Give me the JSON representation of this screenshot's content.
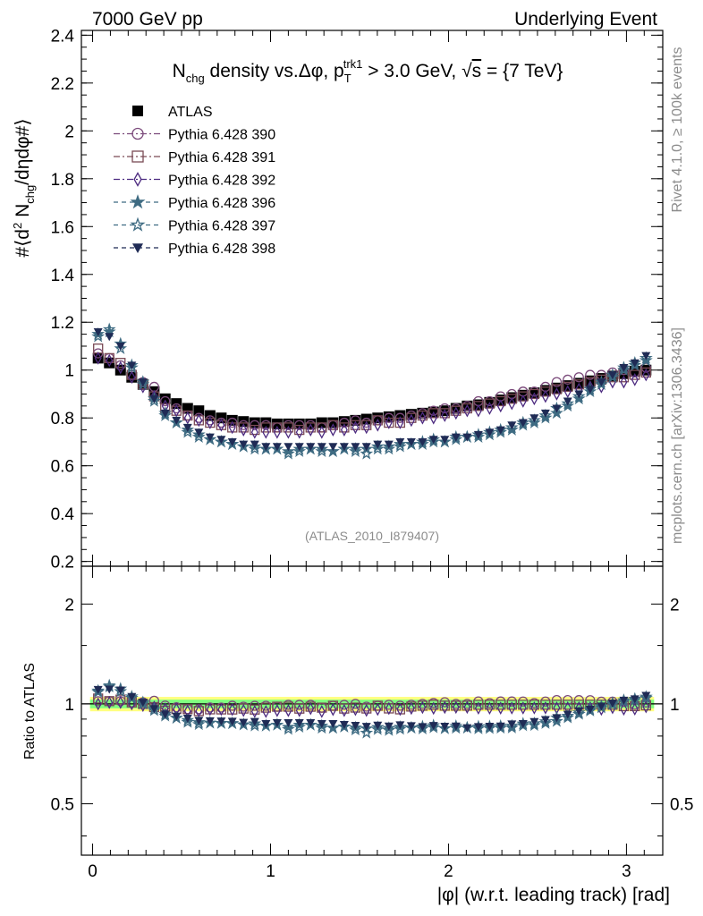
{
  "header": {
    "left": "7000 GeV pp",
    "right": "Underlying Event"
  },
  "side_labels": {
    "rivet": "Rivet 4.1.0, ≥ 100k events",
    "mcplots": "mcplots.cern.ch [arXiv:1306.3436]"
  },
  "colors": {
    "data": "#000000",
    "pythia390": "#7b4a7b",
    "pythia391": "#7a4a55",
    "pythia392": "#4d2b80",
    "pythia396": "#3e6b82",
    "pythia397": "#3e6b82",
    "pythia398": "#1f2b55",
    "band_inner": "#80ff80",
    "band_outer": "#ffff80"
  },
  "chart_data": [
    {
      "type": "scatter",
      "title_parts": {
        "n": "N",
        "n_sub": "chg",
        "rest": " density vs.Δφ, p",
        "p_sub": "T",
        "p_sup": "trk1",
        "cut": " > 3.0 GeV, ",
        "sqrt": "√",
        "s": "s",
        "energy": " = {7 TeV}"
      },
      "ylabel_parts": {
        "a": "#⟨d",
        "sup": "2",
        "b": " N",
        "sub": "chg",
        "c": "/dηdφ#⟩"
      },
      "analysis_tag": "(ATLAS_2010_I879407)",
      "xlim": [
        -0.063,
        3.204
      ],
      "ylim": [
        0.18,
        2.42
      ],
      "yticks": [
        "0.2",
        "0.4",
        "0.6",
        "0.8",
        "1",
        "1.2",
        "1.4",
        "1.6",
        "1.8",
        "2",
        "2.2",
        "2.4"
      ],
      "x": [
        0.031,
        0.094,
        0.157,
        0.22,
        0.283,
        0.346,
        0.408,
        0.471,
        0.534,
        0.597,
        0.66,
        0.723,
        0.785,
        0.848,
        0.911,
        0.974,
        1.037,
        1.1,
        1.162,
        1.225,
        1.288,
        1.351,
        1.414,
        1.477,
        1.539,
        1.602,
        1.665,
        1.728,
        1.791,
        1.854,
        1.916,
        1.979,
        2.042,
        2.105,
        2.168,
        2.231,
        2.293,
        2.356,
        2.419,
        2.482,
        2.545,
        2.608,
        2.67,
        2.733,
        2.796,
        2.859,
        2.922,
        2.985,
        3.047,
        3.11
      ],
      "series": [
        {
          "name": "ATLAS",
          "marker": "square-filled",
          "line": "none",
          "color_key": "data",
          "values": [
            1.05,
            1.03,
            1.0,
            0.97,
            0.94,
            0.91,
            0.88,
            0.86,
            0.84,
            0.83,
            0.81,
            0.8,
            0.79,
            0.785,
            0.78,
            0.78,
            0.775,
            0.775,
            0.775,
            0.775,
            0.78,
            0.78,
            0.785,
            0.79,
            0.795,
            0.8,
            0.805,
            0.81,
            0.815,
            0.82,
            0.825,
            0.83,
            0.84,
            0.85,
            0.855,
            0.865,
            0.875,
            0.885,
            0.895,
            0.905,
            0.915,
            0.925,
            0.935,
            0.945,
            0.955,
            0.965,
            0.975,
            0.985,
            0.995,
            1.0
          ]
        },
        {
          "name": "Pythia 6.428 390",
          "marker": "circle-open",
          "line": "dashdot",
          "color_key": "pythia390",
          "values": [
            1.07,
            1.05,
            1.02,
            0.98,
            0.95,
            0.93,
            0.87,
            0.84,
            0.81,
            0.8,
            0.79,
            0.78,
            0.78,
            0.77,
            0.77,
            0.77,
            0.76,
            0.77,
            0.77,
            0.77,
            0.76,
            0.77,
            0.78,
            0.79,
            0.78,
            0.79,
            0.8,
            0.8,
            0.81,
            0.82,
            0.83,
            0.84,
            0.84,
            0.85,
            0.87,
            0.87,
            0.89,
            0.9,
            0.91,
            0.91,
            0.93,
            0.95,
            0.96,
            0.97,
            0.98,
            0.98,
            0.99,
            1.0,
            0.99,
            1.01
          ]
        },
        {
          "name": "Pythia 6.428 391",
          "marker": "square-open",
          "line": "dashdot",
          "color_key": "pythia391",
          "values": [
            1.09,
            1.05,
            1.03,
            0.98,
            0.94,
            0.89,
            0.84,
            0.83,
            0.81,
            0.79,
            0.78,
            0.77,
            0.76,
            0.76,
            0.75,
            0.76,
            0.76,
            0.76,
            0.75,
            0.76,
            0.76,
            0.77,
            0.76,
            0.77,
            0.77,
            0.79,
            0.78,
            0.78,
            0.8,
            0.81,
            0.82,
            0.82,
            0.83,
            0.84,
            0.85,
            0.86,
            0.87,
            0.88,
            0.89,
            0.9,
            0.91,
            0.92,
            0.93,
            0.94,
            0.95,
            0.96,
            0.97,
            0.97,
            0.98,
            0.99
          ]
        },
        {
          "name": "Pythia 6.428 392",
          "marker": "diamond-open",
          "line": "dashdot",
          "color_key": "pythia392",
          "values": [
            1.05,
            1.04,
            1.01,
            0.97,
            0.93,
            0.89,
            0.85,
            0.83,
            0.8,
            0.79,
            0.78,
            0.77,
            0.76,
            0.75,
            0.74,
            0.74,
            0.74,
            0.74,
            0.74,
            0.75,
            0.74,
            0.75,
            0.75,
            0.76,
            0.76,
            0.77,
            0.78,
            0.78,
            0.79,
            0.8,
            0.8,
            0.81,
            0.82,
            0.83,
            0.83,
            0.84,
            0.85,
            0.86,
            0.87,
            0.88,
            0.89,
            0.9,
            0.91,
            0.92,
            0.93,
            0.93,
            0.95,
            0.95,
            0.96,
            0.98
          ]
        },
        {
          "name": "Pythia 6.428 396",
          "marker": "star-filled",
          "line": "dashed",
          "color_key": "pythia396",
          "values": [
            1.15,
            1.16,
            1.11,
            1.02,
            0.95,
            0.88,
            0.81,
            0.78,
            0.75,
            0.73,
            0.71,
            0.7,
            0.69,
            0.68,
            0.68,
            0.67,
            0.67,
            0.66,
            0.67,
            0.67,
            0.67,
            0.66,
            0.67,
            0.67,
            0.67,
            0.68,
            0.68,
            0.69,
            0.69,
            0.69,
            0.7,
            0.7,
            0.71,
            0.72,
            0.72,
            0.73,
            0.74,
            0.75,
            0.77,
            0.78,
            0.8,
            0.82,
            0.85,
            0.88,
            0.91,
            0.94,
            0.97,
            1.0,
            1.02,
            1.04
          ]
        },
        {
          "name": "Pythia 6.428 397",
          "marker": "star-open",
          "line": "dashed",
          "color_key": "pythia397",
          "values": [
            1.14,
            1.17,
            1.09,
            1.01,
            0.94,
            0.87,
            0.82,
            0.78,
            0.74,
            0.72,
            0.71,
            0.7,
            0.69,
            0.68,
            0.67,
            0.67,
            0.67,
            0.65,
            0.66,
            0.67,
            0.66,
            0.66,
            0.67,
            0.66,
            0.65,
            0.67,
            0.67,
            0.68,
            0.69,
            0.7,
            0.71,
            0.7,
            0.72,
            0.72,
            0.73,
            0.74,
            0.75,
            0.76,
            0.78,
            0.79,
            0.81,
            0.84,
            0.86,
            0.89,
            0.92,
            0.95,
            0.98,
            1.01,
            1.03,
            1.05
          ]
        },
        {
          "name": "Pythia 6.428 398",
          "marker": "triangle-down-filled",
          "line": "dashed",
          "color_key": "pythia398",
          "values": [
            1.16,
            1.14,
            1.1,
            1.02,
            0.95,
            0.88,
            0.82,
            0.79,
            0.76,
            0.74,
            0.72,
            0.71,
            0.7,
            0.69,
            0.69,
            0.68,
            0.68,
            0.68,
            0.68,
            0.68,
            0.68,
            0.68,
            0.68,
            0.68,
            0.68,
            0.69,
            0.69,
            0.7,
            0.7,
            0.7,
            0.71,
            0.71,
            0.72,
            0.72,
            0.73,
            0.74,
            0.75,
            0.77,
            0.78,
            0.8,
            0.82,
            0.84,
            0.87,
            0.9,
            0.92,
            0.95,
            0.98,
            1.01,
            1.03,
            1.06
          ]
        }
      ]
    },
    {
      "type": "scatter",
      "ylabel": "Ratio to ATLAS",
      "xlabel": "|φ| (w.r.t. leading track) [rad]",
      "xlim": [
        -0.063,
        3.204
      ],
      "ylim": [
        0.35,
        2.6
      ],
      "yscale": "log",
      "yticks": [
        "0.5",
        "1",
        "2"
      ],
      "xticks": [
        "0",
        "1",
        "2",
        "3"
      ],
      "reference": 1.0,
      "band_inner": 0.03,
      "band_outer": 0.05
    }
  ]
}
